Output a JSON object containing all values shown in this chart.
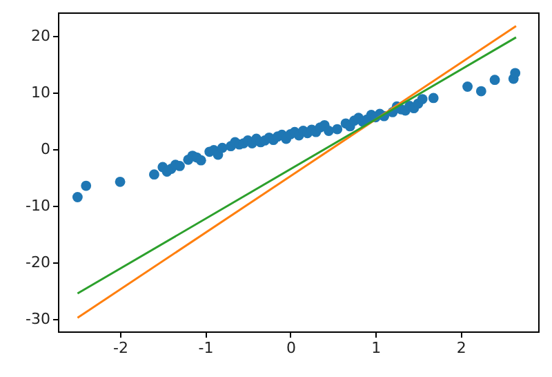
{
  "chart_data": {
    "type": "scatter",
    "xlim": [
      -2.73,
      2.91
    ],
    "ylim": [
      -32.2,
      24.1
    ],
    "xticks": [
      -2,
      -1,
      0,
      1,
      2
    ],
    "yticks": [
      -30,
      -20,
      -10,
      0,
      10,
      20
    ],
    "grid": false,
    "series": [
      {
        "color": "#1f77b4",
        "marker": "circle",
        "x": [
          -2.5,
          -2.4,
          -2.0,
          -1.6,
          -1.5,
          -1.45,
          -1.4,
          -1.35,
          -1.3,
          -1.2,
          -1.15,
          -1.1,
          -1.05,
          -0.95,
          -0.9,
          -0.85,
          -0.8,
          -0.7,
          -0.65,
          -0.6,
          -0.55,
          -0.5,
          -0.45,
          -0.4,
          -0.35,
          -0.3,
          -0.25,
          -0.2,
          -0.15,
          -0.1,
          -0.05,
          0.0,
          0.05,
          0.1,
          0.15,
          0.2,
          0.25,
          0.3,
          0.35,
          0.4,
          0.45,
          0.55,
          0.65,
          0.7,
          0.75,
          0.8,
          0.85,
          0.9,
          0.95,
          1.0,
          1.05,
          1.1,
          1.2,
          1.25,
          1.3,
          1.35,
          1.4,
          1.45,
          1.5,
          1.55,
          1.68,
          2.08,
          2.24,
          2.4,
          2.62,
          2.64
        ],
        "values": [
          -8.5,
          -6.5,
          -5.8,
          -4.5,
          -3.2,
          -4.0,
          -3.5,
          -2.8,
          -3.0,
          -1.9,
          -1.2,
          -1.5,
          -2.0,
          -0.5,
          -0.2,
          -1.0,
          0.2,
          0.5,
          1.2,
          0.8,
          1.0,
          1.5,
          1.0,
          1.8,
          1.2,
          1.5,
          2.0,
          1.6,
          2.2,
          2.5,
          1.8,
          2.6,
          3.0,
          2.4,
          3.2,
          2.8,
          3.4,
          3.0,
          3.8,
          4.2,
          3.2,
          3.5,
          4.5,
          4.0,
          5.0,
          5.5,
          4.8,
          5.2,
          6.0,
          5.6,
          6.2,
          5.8,
          6.5,
          7.5,
          7.0,
          6.8,
          7.6,
          7.2,
          8.0,
          8.8,
          9.0,
          11.0,
          10.2,
          12.2,
          12.4,
          13.4
        ]
      },
      {
        "type": "line",
        "color": "#ff7f0e",
        "x": [
          -2.5,
          2.65
        ],
        "values": [
          -29.8,
          21.7
        ]
      },
      {
        "type": "line",
        "color": "#2ca02c",
        "x": [
          -2.5,
          2.65
        ],
        "values": [
          -25.5,
          19.7
        ]
      }
    ]
  }
}
